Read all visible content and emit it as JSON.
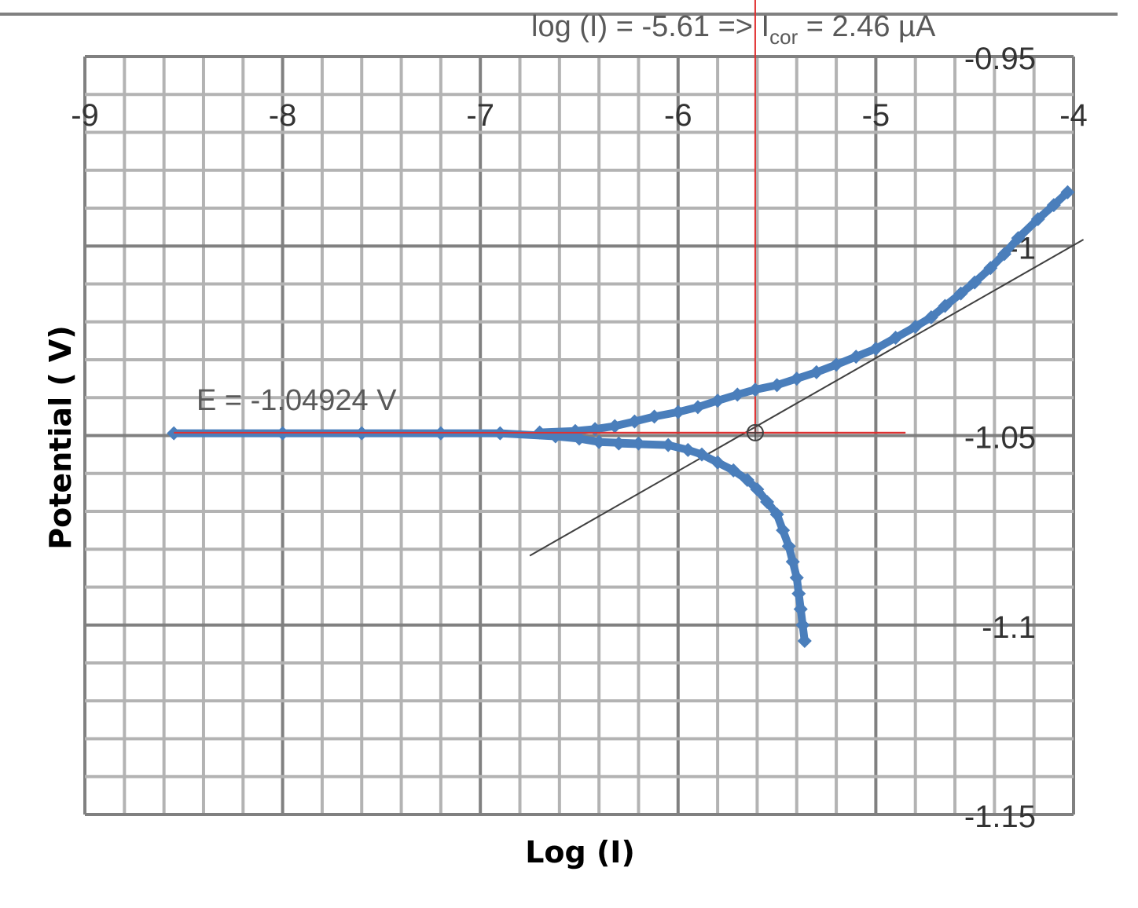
{
  "chart_data": {
    "type": "scatter",
    "title": "",
    "xlabel": "Log (I)",
    "ylabel": "Potential ( V)",
    "xlim": [
      -9,
      -4
    ],
    "ylim": [
      -1.15,
      -0.95
    ],
    "x_ticks": [
      "-9",
      "-8",
      "-7",
      "-6",
      "-5",
      "-4"
    ],
    "y_ticks": [
      "-0.95",
      "-1",
      "-1.05",
      "-1.1",
      "-1.15"
    ],
    "grid": true,
    "x_axis_position": "top",
    "y_axis_position": "right",
    "colors": {
      "series": "#4a7ebb",
      "marker_line": "#e03030",
      "tangent": "#404040",
      "grid_minor": "#b3b3b3",
      "grid_major": "#808080",
      "top_rule": "#808080"
    },
    "series": [
      {
        "points": [
          [
            -4.03,
            -0.9858
          ],
          [
            -4.1,
            -0.9892
          ],
          [
            -4.18,
            -0.9929
          ],
          [
            -4.28,
            -0.9979
          ],
          [
            -4.35,
            -1.0021
          ],
          [
            -4.42,
            -1.0058
          ],
          [
            -4.5,
            -1.0096
          ],
          [
            -4.57,
            -1.0125
          ],
          [
            -4.65,
            -1.0158
          ],
          [
            -4.72,
            -1.0188
          ],
          [
            -4.8,
            -1.0213
          ],
          [
            -4.9,
            -1.0242
          ],
          [
            -5.0,
            -1.0271
          ],
          [
            -5.1,
            -1.0292
          ],
          [
            -5.2,
            -1.0313
          ],
          [
            -5.3,
            -1.0333
          ],
          [
            -5.4,
            -1.035
          ],
          [
            -5.5,
            -1.0367
          ],
          [
            -5.61,
            -1.0379
          ],
          [
            -5.7,
            -1.0392
          ],
          [
            -5.8,
            -1.0408
          ],
          [
            -5.9,
            -1.0425
          ],
          [
            -6.0,
            -1.0438
          ],
          [
            -6.12,
            -1.045
          ],
          [
            -6.22,
            -1.0463
          ],
          [
            -6.32,
            -1.0475
          ],
          [
            -6.42,
            -1.0483
          ],
          [
            -6.52,
            -1.0488
          ],
          [
            -6.7,
            -1.0492
          ],
          [
            -6.9,
            -1.0494
          ],
          [
            -7.2,
            -1.0494
          ],
          [
            -7.6,
            -1.0494
          ],
          [
            -8.0,
            -1.0494
          ],
          [
            -8.55,
            -1.0494
          ],
          [
            -6.62,
            -1.0502
          ],
          [
            -6.5,
            -1.0508
          ],
          [
            -6.4,
            -1.0517
          ],
          [
            -6.3,
            -1.0521
          ],
          [
            -6.2,
            -1.0521
          ],
          [
            -6.05,
            -1.0525
          ],
          [
            -5.95,
            -1.0538
          ],
          [
            -5.88,
            -1.055
          ],
          [
            -5.8,
            -1.0571
          ],
          [
            -5.72,
            -1.0592
          ],
          [
            -5.65,
            -1.0617
          ],
          [
            -5.6,
            -1.0642
          ],
          [
            -5.55,
            -1.0675
          ],
          [
            -5.5,
            -1.0708
          ],
          [
            -5.47,
            -1.075
          ],
          [
            -5.44,
            -1.0792
          ],
          [
            -5.42,
            -1.0833
          ],
          [
            -5.4,
            -1.0875
          ],
          [
            -5.39,
            -1.0917
          ],
          [
            -5.38,
            -1.0958
          ],
          [
            -5.37,
            -1.1
          ],
          [
            -5.36,
            -1.1042
          ]
        ]
      }
    ],
    "lines": {
      "tangent": {
        "x": [
          -6.75,
          -3.95
        ],
        "y": [
          -1.0817,
          -0.9983
        ]
      },
      "ecorr_line": {
        "x": [
          -8.55,
          -4.85
        ],
        "y": [
          -1.04924,
          -1.04924
        ]
      },
      "icorr_line": {
        "x": [
          -5.61,
          -5.61
        ],
        "y": [
          -1.04924,
          -0.93
        ]
      },
      "intersection": {
        "x": -5.61,
        "y": -1.04924
      }
    },
    "annotations": {
      "icorr_prefix": "log (I) = -5.61 => I",
      "icorr_sub": "cor",
      "icorr_suffix": " = 2.46 µA",
      "ecorr": "E = -1.04924  V"
    }
  }
}
